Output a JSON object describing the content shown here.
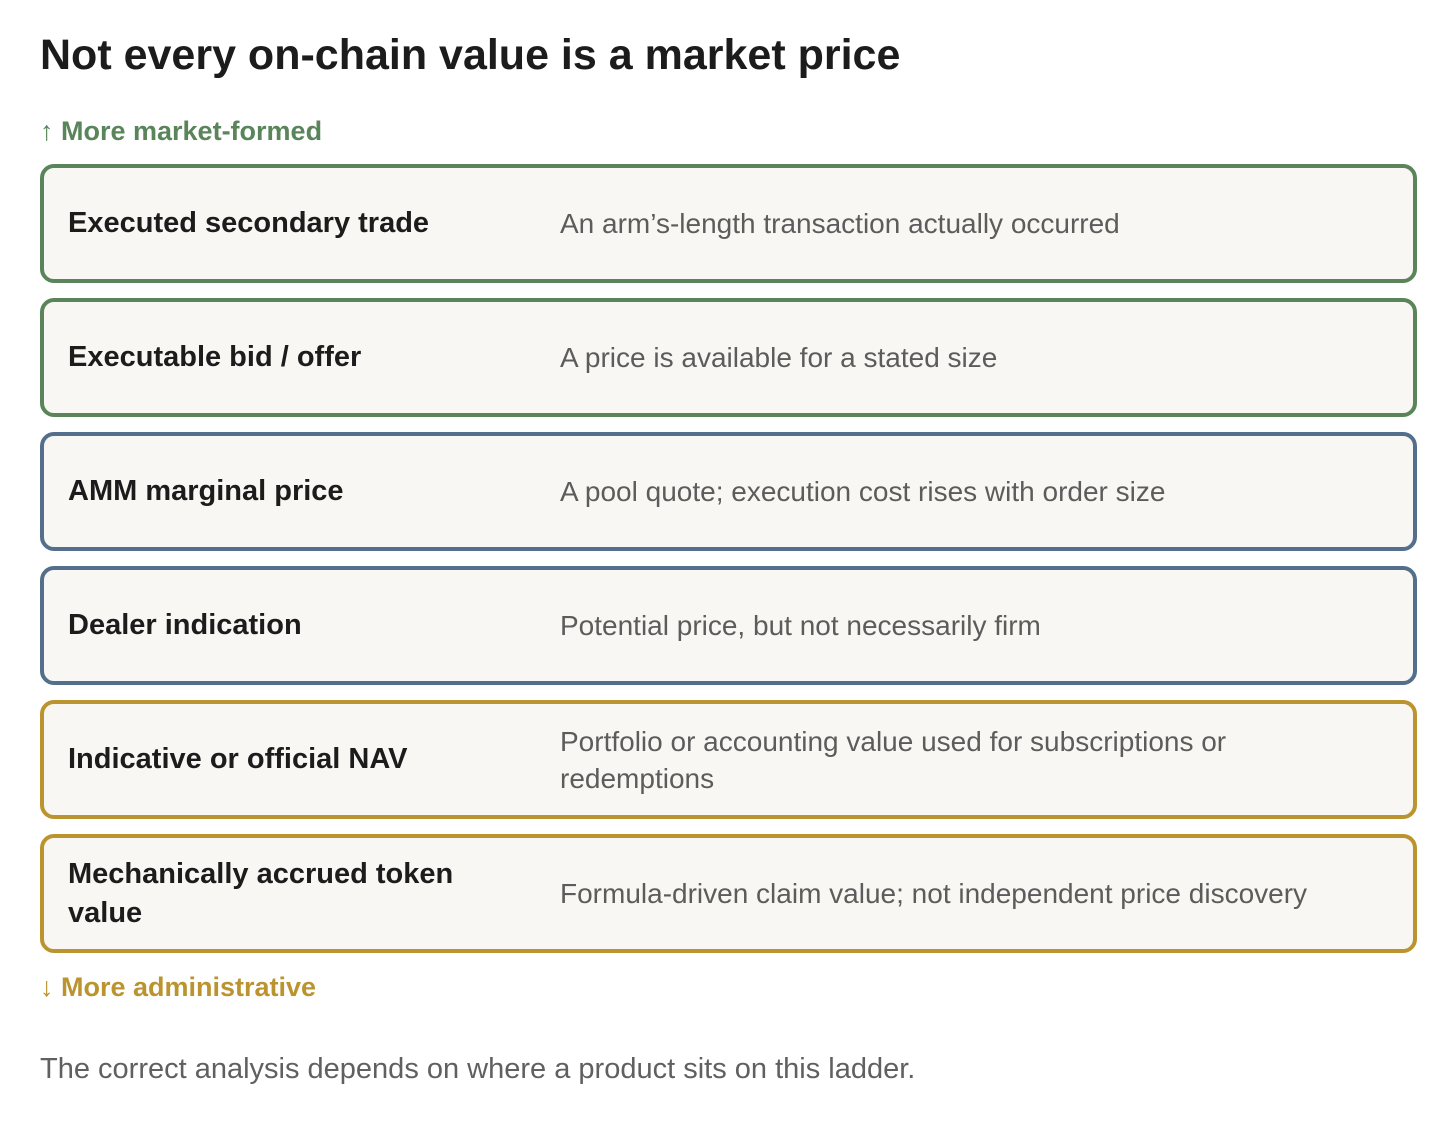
{
  "title": "Not every on-chain value is a market price",
  "axis": {
    "top_label": "↑ More market-formed",
    "bottom_label": "↓ More administrative"
  },
  "colors": {
    "market": "#5a8459",
    "quote": "#546f8c",
    "administrative": "#bb942f"
  },
  "ladder": [
    {
      "label": "Executed secondary trade",
      "description": "An arm’s-length transaction actually occurred",
      "tier": "market"
    },
    {
      "label": "Executable bid / offer",
      "description": "A price is available for a stated size",
      "tier": "market"
    },
    {
      "label": "AMM marginal price",
      "description": "A pool quote; execution cost rises with order size",
      "tier": "quote"
    },
    {
      "label": "Dealer indication",
      "description": "Potential price, but not necessarily firm",
      "tier": "quote"
    },
    {
      "label": "Indicative or official NAV",
      "description": "Portfolio or accounting value used for subscriptions or redemptions",
      "tier": "administrative"
    },
    {
      "label": "Mechanically accrued token value",
      "description": "Formula-driven claim value; not independent price discovery",
      "tier": "administrative"
    }
  ],
  "footer": "The correct analysis depends on where a product sits on this ladder."
}
